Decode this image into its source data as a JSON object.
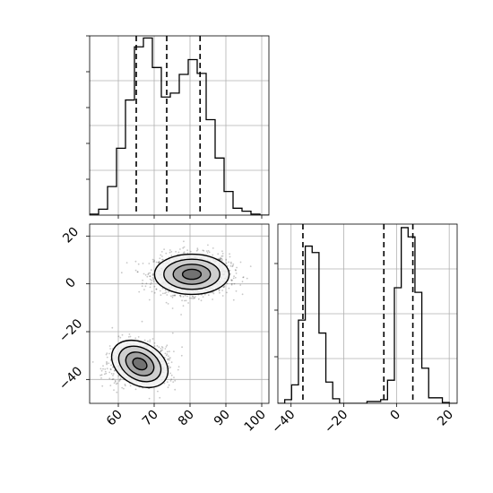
{
  "chart_data": [
    {
      "type": "histogram",
      "panel": "top-left",
      "variable": 1,
      "xlim": [
        52,
        102
      ],
      "grid": true,
      "y_tick_labels_shown": false,
      "bins": [
        {
          "x0": 52,
          "x1": 54.5,
          "count": 1
        },
        {
          "x0": 54.5,
          "x1": 57,
          "count": 6
        },
        {
          "x0": 57,
          "x1": 59.5,
          "count": 29
        },
        {
          "x0": 59.5,
          "x1": 62,
          "count": 68
        },
        {
          "x0": 62,
          "x1": 64.5,
          "count": 117
        },
        {
          "x0": 64.5,
          "x1": 67,
          "count": 171
        },
        {
          "x0": 67,
          "x1": 69.5,
          "count": 180
        },
        {
          "x0": 69.5,
          "x1": 72,
          "count": 150
        },
        {
          "x0": 72,
          "x1": 74.5,
          "count": 120
        },
        {
          "x0": 74.5,
          "x1": 77,
          "count": 124
        },
        {
          "x0": 77,
          "x1": 79.5,
          "count": 143
        },
        {
          "x0": 79.5,
          "x1": 82,
          "count": 158
        },
        {
          "x0": 82,
          "x1": 84.5,
          "count": 144
        },
        {
          "x0": 84.5,
          "x1": 87,
          "count": 97
        },
        {
          "x0": 87,
          "x1": 89.5,
          "count": 58
        },
        {
          "x0": 89.5,
          "x1": 92,
          "count": 24
        },
        {
          "x0": 92,
          "x1": 94.5,
          "count": 7
        },
        {
          "x0": 94.5,
          "x1": 97,
          "count": 4
        },
        {
          "x0": 97,
          "x1": 99.5,
          "count": 1
        },
        {
          "x0": 99.5,
          "x1": 102,
          "count": 0
        }
      ],
      "quantile_lines": [
        65,
        73.5,
        82.8
      ]
    },
    {
      "type": "histogram",
      "panel": "bottom-right",
      "variable": 2,
      "xlim": [
        -45,
        23
      ],
      "xticks": [
        -40,
        -20,
        0,
        20
      ],
      "grid": true,
      "y_tick_labels_shown": false,
      "bins": [
        {
          "x0": -45,
          "x1": -42.4,
          "count": 0
        },
        {
          "x0": -42.4,
          "x1": -39.8,
          "count": 4
        },
        {
          "x0": -39.8,
          "x1": -37.2,
          "count": 20
        },
        {
          "x0": -37.2,
          "x1": -34.6,
          "count": 90
        },
        {
          "x0": -34.6,
          "x1": -32,
          "count": 170
        },
        {
          "x0": -32,
          "x1": -29.4,
          "count": 163
        },
        {
          "x0": -29.4,
          "x1": -26.8,
          "count": 76
        },
        {
          "x0": -26.8,
          "x1": -24.2,
          "count": 23
        },
        {
          "x0": -24.2,
          "x1": -21.6,
          "count": 5
        },
        {
          "x0": -21.6,
          "x1": -19,
          "count": 0
        },
        {
          "x0": -19,
          "x1": -16.4,
          "count": 0
        },
        {
          "x0": -16.4,
          "x1": -13.8,
          "count": 0
        },
        {
          "x0": -13.8,
          "x1": -11.2,
          "count": 0
        },
        {
          "x0": -11.2,
          "x1": -8.6,
          "count": 2
        },
        {
          "x0": -8.6,
          "x1": -6,
          "count": 2
        },
        {
          "x0": -6,
          "x1": -3.4,
          "count": 4
        },
        {
          "x0": -3.4,
          "x1": -0.8,
          "count": 25
        },
        {
          "x0": -0.8,
          "x1": 1.8,
          "count": 125
        },
        {
          "x0": 1.8,
          "x1": 4.4,
          "count": 190
        },
        {
          "x0": 4.4,
          "x1": 7,
          "count": 180
        },
        {
          "x0": 7,
          "x1": 9.6,
          "count": 120
        },
        {
          "x0": 9.6,
          "x1": 12.2,
          "count": 38
        },
        {
          "x0": 12.2,
          "x1": 14.8,
          "count": 6
        },
        {
          "x0": 14.8,
          "x1": 17.4,
          "count": 6
        },
        {
          "x0": 17.4,
          "x1": 20,
          "count": 1
        },
        {
          "x0": 20,
          "x1": 23,
          "count": 0
        }
      ],
      "quantile_lines": [
        -35.5,
        -4.8,
        6.2
      ]
    },
    {
      "type": "scatter-contour",
      "panel": "bottom-left",
      "xlim": [
        52,
        102
      ],
      "ylim": [
        -50,
        25
      ],
      "xticks": [
        60,
        70,
        80,
        90,
        100
      ],
      "yticks": [
        -40,
        -20,
        0,
        20
      ],
      "grid": true,
      "clusters": [
        {
          "center": [
            80.5,
            4
          ],
          "spread": [
            5.2,
            4.2
          ],
          "rotation_deg": 0,
          "points": 1500
        },
        {
          "center": [
            66,
            -33.5
          ],
          "spread": [
            4.2,
            4.4
          ],
          "rotation_deg": -30,
          "points": 1000
        }
      ],
      "contour_levels_sigma": [
        0.5,
        1,
        1.5,
        2
      ]
    }
  ]
}
